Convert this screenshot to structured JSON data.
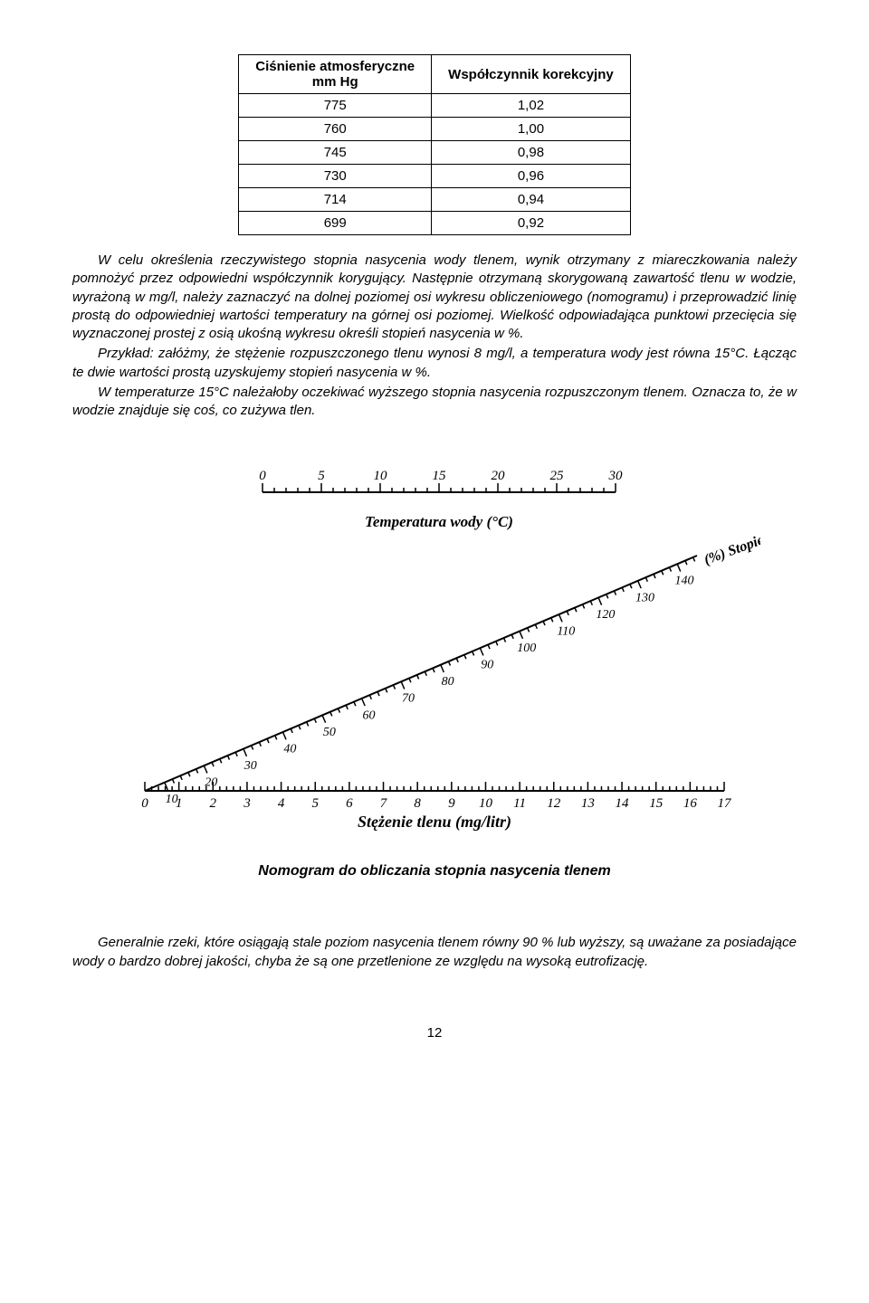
{
  "table": {
    "headers": [
      "Ciśnienie atmosferyczne\nmm Hg",
      "Współczynnik korekcyjny"
    ],
    "rows": [
      [
        "775",
        "1,02"
      ],
      [
        "760",
        "1,00"
      ],
      [
        "745",
        "0,98"
      ],
      [
        "730",
        "0,96"
      ],
      [
        "714",
        "0,94"
      ],
      [
        "699",
        "0,92"
      ]
    ]
  },
  "paragraphs": {
    "p1": "W celu określenia rzeczywistego stopnia nasycenia wody tlenem, wynik otrzymany z miareczkowania należy pomnożyć przez odpowiedni współczynnik korygujący. Następnie otrzymaną skorygowaną zawartość tlenu w wodzie, wyrażoną w mg/l, należy zaznaczyć na dolnej poziomej osi wykresu obliczeniowego (nomogramu) i przeprowadzić linię prostą do odpowiedniej wartości temperatury na górnej osi poziomej. Wielkość odpowiadająca punktowi przecięcia się wyznaczonej prostej z osią ukośną wykresu określi stopień nasycenia w %.",
    "p2": "Przykład: załóżmy, że stężenie rozpuszczonego tlenu wynosi 8 mg/l, a temperatura wody jest równa 15°C. Łącząc te dwie wartości prostą uzyskujemy stopień nasycenia w %.",
    "p3": "W temperaturze 15°C należałoby oczekiwać wyższego stopnia nasycenia rozpuszczonym tlenem. Oznacza to, że w wodzie znajduje się coś, co zużywa tlen.",
    "p4": "Generalnie rzeki, które osiągają stale poziom nasycenia tlenem równy 90 % lub wyższy, są uważane za posiadające wody o bardzo dobrej jakości, chyba że są one przetlenione ze względu na wysoką eutrofizację."
  },
  "nomogram": {
    "top_axis": {
      "label": "Temperatura wody (°C)",
      "ticks": [
        "0",
        "5",
        "10",
        "15",
        "20",
        "25",
        "30"
      ]
    },
    "diagonal_axis": {
      "label": "(%) Stopień nasycenia",
      "ticks_major": [
        "10",
        "20",
        "30",
        "40",
        "50",
        "60",
        "70",
        "80",
        "90",
        "100",
        "110",
        "120",
        "130",
        "140"
      ]
    },
    "bottom_axis": {
      "label": "Stężenie tlenu (mg/litr)",
      "ticks": [
        "0",
        "1",
        "2",
        "3",
        "4",
        "5",
        "6",
        "7",
        "8",
        "9",
        "10",
        "11",
        "12",
        "13",
        "14",
        "15",
        "16",
        "17"
      ]
    }
  },
  "caption": "Nomogram do obliczania stopnia nasycenia tlenem",
  "page_number": "12"
}
